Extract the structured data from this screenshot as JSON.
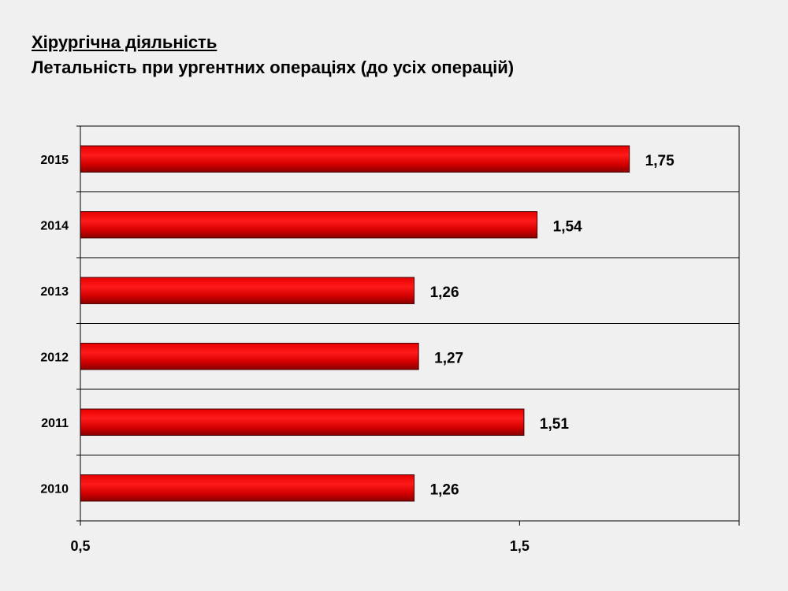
{
  "title_line1": "Хірургічна діяльність",
  "title_line2": "Летальність при  ургентних операціях (до усіх операцій)",
  "chart_data": {
    "type": "bar",
    "orientation": "horizontal",
    "title": "Хірургічна діяльність",
    "subtitle": "Летальність при  ургентних операціях (до усіх операцій)",
    "categories": [
      "2015",
      "2014",
      "2013",
      "2012",
      "2011",
      "2010"
    ],
    "values": [
      1.75,
      1.54,
      1.26,
      1.27,
      1.51,
      1.26
    ],
    "value_labels": [
      "1,75",
      "1,54",
      "1,26",
      "1,27",
      "1,51",
      "1,26"
    ],
    "xlim": [
      0.5,
      2.0
    ],
    "x_ticks": [
      0.5,
      1.5
    ],
    "x_tick_labels": [
      "0,5",
      "1,5"
    ],
    "xlabel": "",
    "ylabel": "",
    "bar_color": "#ff0000",
    "grid": "horizontal",
    "legend": "none"
  }
}
